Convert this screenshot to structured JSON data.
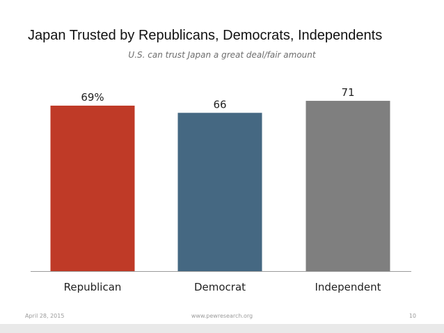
{
  "slide": {
    "title": "Japan Trusted by Republicans, Democrats, Independents",
    "subtitle": "U.S. can trust Japan a great deal/fair amount",
    "footer_date": "April 28, 2015",
    "footer_url": "www.pewresearch.org",
    "page_number": "10"
  },
  "colors": {
    "republican": "#bf3a27",
    "democrat": "#456882",
    "independent": "#7f7f7f",
    "axis": "#9a9a9a"
  },
  "chart_data": {
    "type": "bar",
    "title": "Japan Trusted by Republicans, Democrats, Independents",
    "subtitle": "U.S. can trust Japan a great deal/fair amount",
    "categories": [
      "Republican",
      "Democrat",
      "Independent"
    ],
    "values": [
      69,
      66,
      71
    ],
    "data_labels": [
      "69%",
      "66",
      "71"
    ],
    "xlabel": "",
    "ylabel": "",
    "ylim": [
      0,
      100
    ],
    "grid": false,
    "legend": "none"
  }
}
